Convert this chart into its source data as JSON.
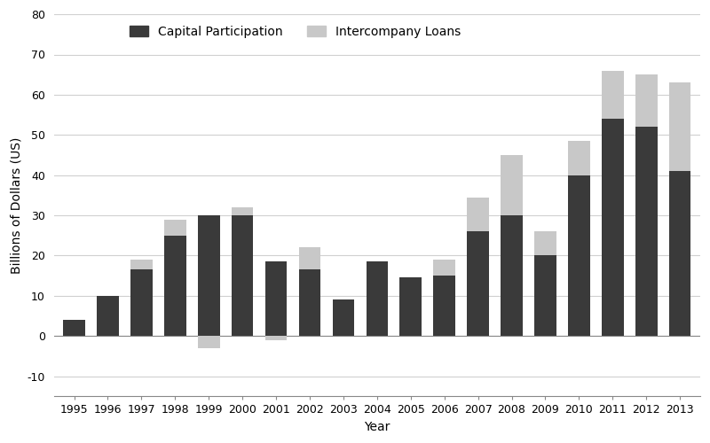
{
  "years": [
    1995,
    1996,
    1997,
    1998,
    1999,
    2000,
    2001,
    2002,
    2003,
    2004,
    2005,
    2006,
    2007,
    2008,
    2009,
    2010,
    2011,
    2012,
    2013
  ],
  "capital_participation": [
    4,
    10,
    16.5,
    25,
    30,
    30,
    18.5,
    16.5,
    9,
    18.5,
    14.5,
    15,
    26,
    30,
    20,
    40,
    54,
    52,
    41
  ],
  "intercompany_loans": [
    0,
    0,
    2.5,
    4,
    -3,
    2,
    -1,
    5.5,
    0,
    0,
    0,
    4,
    8.5,
    15,
    6,
    8.5,
    12,
    13,
    22
  ],
  "capital_color": "#3a3a3a",
  "intercompany_color": "#c8c8c8",
  "xlabel": "Year",
  "ylabel": "Billions of Dollars (US)",
  "ylim": [
    -15,
    80
  ],
  "yticks": [
    -10,
    0,
    10,
    20,
    30,
    40,
    50,
    60,
    70,
    80
  ],
  "legend_capital": "Capital Participation",
  "legend_intercompany": "Intercompany Loans",
  "bar_width": 0.65,
  "figsize": [
    8.0,
    5.0
  ],
  "dpi": 100
}
